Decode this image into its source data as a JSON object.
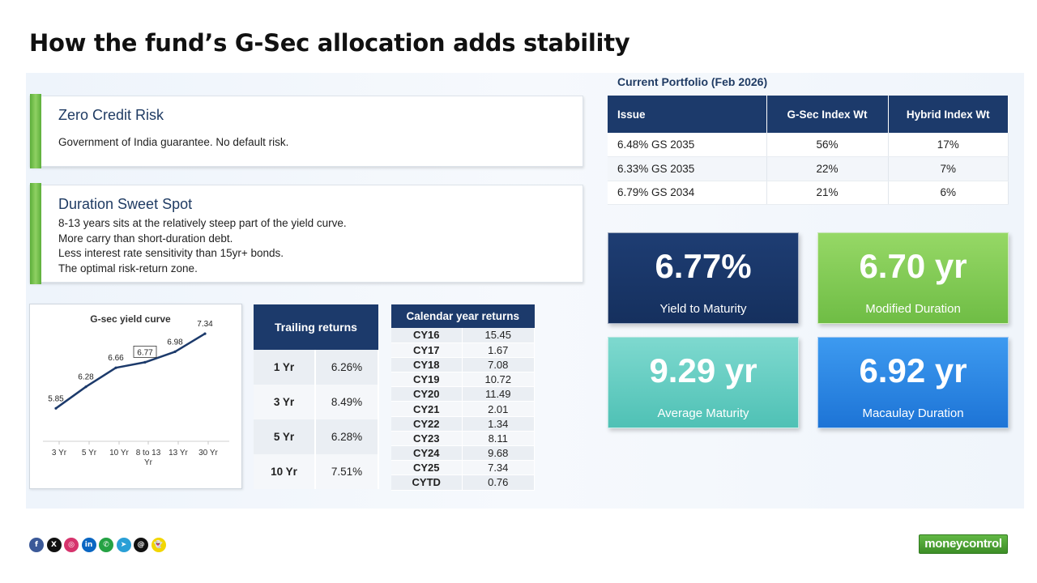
{
  "title": "How the fund’s G-Sec allocation adds stability",
  "cards": [
    {
      "heading": "Zero Credit Risk",
      "lines": [
        "Government of India guarantee. No default risk."
      ]
    },
    {
      "heading": "Duration Sweet Spot",
      "lines": [
        "8-13 years sits at the relatively steep part of the yield curve.",
        "More carry than short-duration debt.",
        "Less interest rate sensitivity than 15yr+ bonds.",
        "The optimal risk-return zone."
      ]
    }
  ],
  "chart_data": {
    "type": "line",
    "title": "G-sec yield curve",
    "categories": [
      "3 Yr",
      "5 Yr",
      "10 Yr",
      "8 to 13 Yr",
      "13 Yr",
      "30 Yr"
    ],
    "values": [
      5.85,
      6.28,
      6.66,
      6.77,
      6.98,
      7.34
    ],
    "data_labels": [
      "5.85",
      "6.28",
      "6.66",
      "6.77",
      "6.98",
      "7.34"
    ],
    "highlighted_category": "8 to 13 Yr",
    "series_color": "#1c3a6b",
    "grid": false,
    "xlabel": "",
    "ylabel": ""
  },
  "trailing_returns": {
    "header": "Trailing returns",
    "rows": [
      {
        "period": "1 Yr",
        "value": "6.26%"
      },
      {
        "period": "3 Yr",
        "value": "8.49%"
      },
      {
        "period": "5 Yr",
        "value": "6.28%"
      },
      {
        "period": "10 Yr",
        "value": "7.51%"
      }
    ]
  },
  "calendar_returns": {
    "header": "Calendar year returns",
    "rows": [
      {
        "year": "CY16",
        "value": "15.45"
      },
      {
        "year": "CY17",
        "value": "1.67"
      },
      {
        "year": "CY18",
        "value": "7.08"
      },
      {
        "year": "CY19",
        "value": "10.72"
      },
      {
        "year": "CY20",
        "value": "11.49"
      },
      {
        "year": "CY21",
        "value": "2.01"
      },
      {
        "year": "CY22",
        "value": "1.34"
      },
      {
        "year": "CY23",
        "value": "8.11"
      },
      {
        "year": "CY24",
        "value": "9.68"
      },
      {
        "year": "CY25",
        "value": "7.34"
      },
      {
        "year": "CYTD",
        "value": "0.76"
      }
    ]
  },
  "portfolio": {
    "caption": "Current Portfolio (Feb 2026)",
    "headers": [
      "Issue",
      "G-Sec Index Wt",
      "Hybrid Index Wt"
    ],
    "rows": [
      [
        "6.48% GS 2035",
        "56%",
        "17%"
      ],
      [
        "6.33% GS 2035",
        "22%",
        "7%"
      ],
      [
        "6.79% GS 2034",
        "21%",
        "6%"
      ]
    ]
  },
  "metrics": [
    {
      "value": "6.77%",
      "label": "Yield to Maturity",
      "colors": [
        "#1e3d73",
        "#15305e"
      ]
    },
    {
      "value": "6.70 yr",
      "label": "Modified Duration",
      "colors": [
        "#96d866",
        "#6fbd45"
      ]
    },
    {
      "value": "9.29 yr",
      "label": "Average Maturity",
      "colors": [
        "#7ed9cf",
        "#4fc1b5"
      ]
    },
    {
      "value": "6.92 yr",
      "label": "Macaulay Duration",
      "colors": [
        "#3d9af0",
        "#1d74d6"
      ]
    }
  ],
  "social_icons": [
    {
      "name": "facebook-icon",
      "glyph": "f",
      "color": "#3b5998"
    },
    {
      "name": "x-icon",
      "glyph": "X",
      "color": "#111111"
    },
    {
      "name": "instagram-icon",
      "glyph": "◎",
      "color": "#d6336c"
    },
    {
      "name": "linkedin-icon",
      "glyph": "in",
      "color": "#0a66c2"
    },
    {
      "name": "whatsapp-icon",
      "glyph": "✆",
      "color": "#25a244"
    },
    {
      "name": "telegram-icon",
      "glyph": "➤",
      "color": "#2a9fd6"
    },
    {
      "name": "threads-icon",
      "glyph": "@",
      "color": "#111111"
    },
    {
      "name": "snapchat-icon",
      "glyph": "👻",
      "color": "#f2d600"
    }
  ],
  "brand": "moneycontrol"
}
